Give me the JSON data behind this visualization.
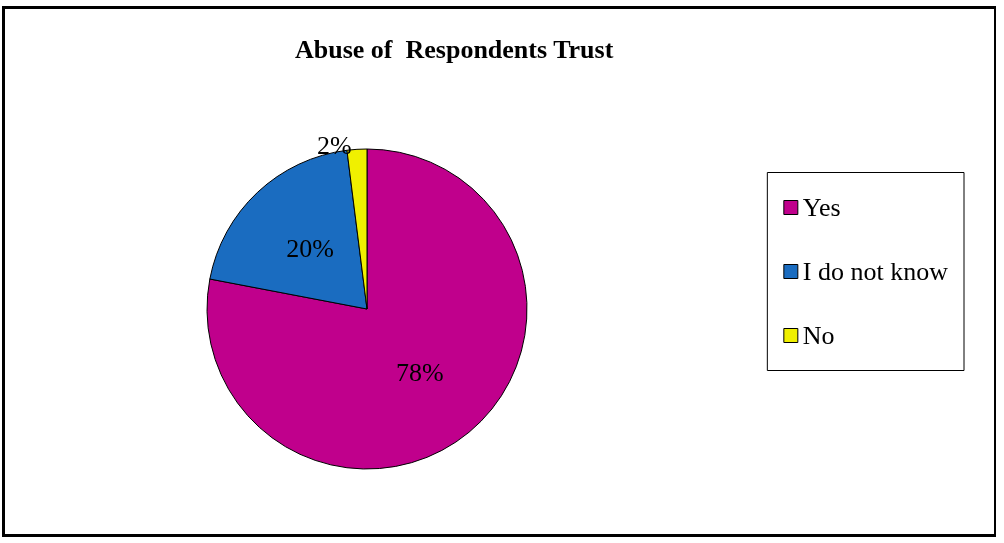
{
  "chart_data": {
    "type": "pie",
    "title": "Abuse of  Respondents Trust",
    "categories": [
      "Yes",
      "I do not know",
      "No"
    ],
    "values": [
      78,
      20,
      2
    ],
    "colors": [
      "#c0008c",
      "#1a6cc0",
      "#f0f000"
    ],
    "value_labels": [
      "78%",
      "20%",
      "2%"
    ],
    "legend": "right"
  }
}
